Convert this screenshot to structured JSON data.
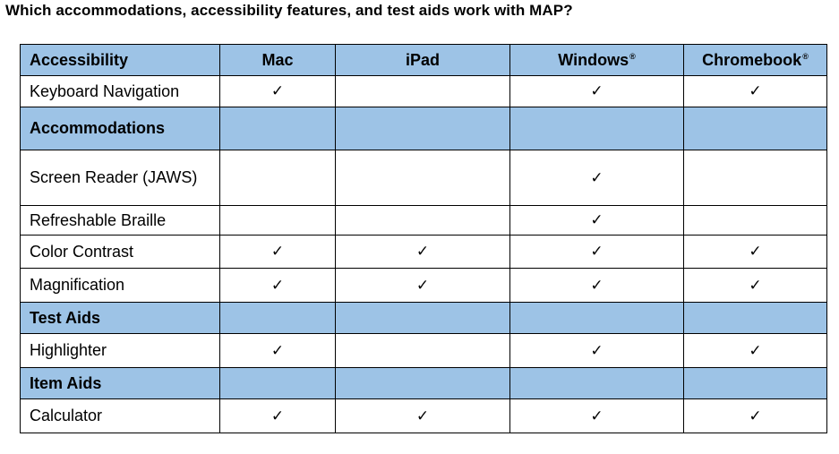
{
  "question": "Which accommodations, accessibility features, and test aids work with MAP?",
  "header": {
    "feature": "Accessibility",
    "mac": "Mac",
    "ipad": "iPad",
    "windows": "Windows",
    "chromebook": "Chromebook",
    "registered_mark": "®"
  },
  "checkmark": "✓",
  "rows": [
    {
      "type": "item",
      "label": "Keyboard Navigation",
      "mac": true,
      "ipad": false,
      "windows": true,
      "chromebook": true
    },
    {
      "type": "section",
      "label": "Accommodations"
    },
    {
      "type": "item",
      "label": "Screen Reader (JAWS)",
      "mac": false,
      "ipad": false,
      "windows": true,
      "chromebook": false
    },
    {
      "type": "item",
      "label": "Refreshable Braille",
      "mac": false,
      "ipad": false,
      "windows": true,
      "chromebook": false
    },
    {
      "type": "item",
      "label": "Color Contrast",
      "mac": true,
      "ipad": true,
      "windows": true,
      "chromebook": true
    },
    {
      "type": "item",
      "label": "Magnification",
      "mac": true,
      "ipad": true,
      "windows": true,
      "chromebook": true
    },
    {
      "type": "section",
      "label": "Test Aids"
    },
    {
      "type": "item",
      "label": "Highlighter",
      "mac": true,
      "ipad": false,
      "windows": true,
      "chromebook": true
    },
    {
      "type": "section",
      "label": "Item Aids"
    },
    {
      "type": "item",
      "label": "Calculator",
      "mac": true,
      "ipad": true,
      "windows": true,
      "chromebook": true
    }
  ],
  "colors": {
    "header_fill": "#9dc3e6",
    "border": "#000000",
    "text": "#000000"
  }
}
